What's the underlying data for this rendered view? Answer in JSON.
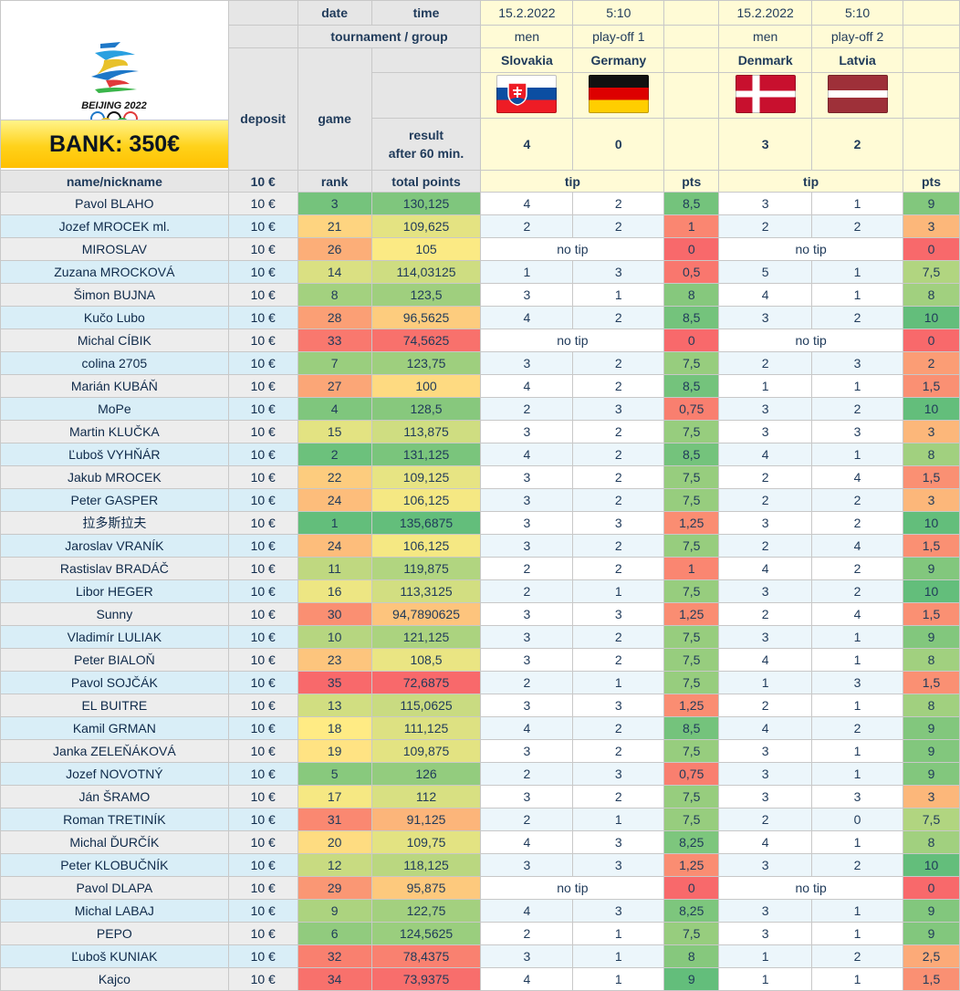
{
  "header": {
    "date_label": "date",
    "time_label": "time",
    "tournament_label": "tournament / group",
    "deposit_label": "deposit",
    "game_label": "game",
    "result_label_1": "result",
    "result_label_2": "after 60 min.",
    "bank": "BANK: 350€",
    "logo_text": "BEIJING 2022"
  },
  "columns": {
    "name": "name/nickname",
    "deposit": "10 €",
    "rank": "rank",
    "total": "total points",
    "tip": "tip",
    "pts": "pts"
  },
  "matches": [
    {
      "date": "15.2.2022",
      "time": "5:10",
      "category": "men",
      "group": "play-off 1",
      "team1": "Slovakia",
      "team2": "Germany",
      "score1": "4",
      "score2": "0"
    },
    {
      "date": "15.2.2022",
      "time": "5:10",
      "category": "men",
      "group": "play-off 2",
      "team1": "Denmark",
      "team2": "Latvia",
      "score1": "3",
      "score2": "2"
    }
  ],
  "colors": {
    "rank_scale_best": "#63be7b",
    "rank_scale_mid": "#ffeb84",
    "rank_scale_worst": "#f8696b"
  },
  "rows": [
    {
      "name": "Pavol BLAHO",
      "deposit": "10 €",
      "rank": "3",
      "total": "130,125",
      "t1a": "4",
      "t1b": "2",
      "p1": "8,5",
      "t2a": "3",
      "t2b": "1",
      "p2": "9"
    },
    {
      "name": "Jozef MROCEK ml.",
      "deposit": "10 €",
      "rank": "21",
      "total": "109,625",
      "t1a": "2",
      "t1b": "2",
      "p1": "1",
      "t2a": "2",
      "t2b": "2",
      "p2": "3"
    },
    {
      "name": "MIROSLAV",
      "deposit": "10 €",
      "rank": "26",
      "total": "105",
      "notip1": "no tip",
      "p1": "0",
      "notip2": "no tip",
      "p2": "0"
    },
    {
      "name": "Zuzana MROCKOVÁ",
      "deposit": "10 €",
      "rank": "14",
      "total": "114,03125",
      "t1a": "1",
      "t1b": "3",
      "p1": "0,5",
      "t2a": "5",
      "t2b": "1",
      "p2": "7,5"
    },
    {
      "name": "Šimon BUJNA",
      "deposit": "10 €",
      "rank": "8",
      "total": "123,5",
      "t1a": "3",
      "t1b": "1",
      "p1": "8",
      "t2a": "4",
      "t2b": "1",
      "p2": "8"
    },
    {
      "name": "Kučo Lubo",
      "deposit": "10 €",
      "rank": "28",
      "total": "96,5625",
      "t1a": "4",
      "t1b": "2",
      "p1": "8,5",
      "t2a": "3",
      "t2b": "2",
      "p2": "10"
    },
    {
      "name": "Michal CÍBIK",
      "deposit": "10 €",
      "rank": "33",
      "total": "74,5625",
      "notip1": "no tip",
      "p1": "0",
      "notip2": "no tip",
      "p2": "0"
    },
    {
      "name": "colina 2705",
      "deposit": "10 €",
      "rank": "7",
      "total": "123,75",
      "t1a": "3",
      "t1b": "2",
      "p1": "7,5",
      "t2a": "2",
      "t2b": "3",
      "p2": "2"
    },
    {
      "name": "Marián KUBÁŇ",
      "deposit": "10 €",
      "rank": "27",
      "total": "100",
      "t1a": "4",
      "t1b": "2",
      "p1": "8,5",
      "t2a": "1",
      "t2b": "1",
      "p2": "1,5"
    },
    {
      "name": "MoPe",
      "deposit": "10 €",
      "rank": "4",
      "total": "128,5",
      "t1a": "2",
      "t1b": "3",
      "p1": "0,75",
      "t2a": "3",
      "t2b": "2",
      "p2": "10"
    },
    {
      "name": "Martin KLUČKA",
      "deposit": "10 €",
      "rank": "15",
      "total": "113,875",
      "t1a": "3",
      "t1b": "2",
      "p1": "7,5",
      "t2a": "3",
      "t2b": "3",
      "p2": "3"
    },
    {
      "name": "Ľuboš VYHŇÁR",
      "deposit": "10 €",
      "rank": "2",
      "total": "131,125",
      "t1a": "4",
      "t1b": "2",
      "p1": "8,5",
      "t2a": "4",
      "t2b": "1",
      "p2": "8"
    },
    {
      "name": "Jakub MROCEK",
      "deposit": "10 €",
      "rank": "22",
      "total": "109,125",
      "t1a": "3",
      "t1b": "2",
      "p1": "7,5",
      "t2a": "2",
      "t2b": "4",
      "p2": "1,5"
    },
    {
      "name": "Peter GASPER",
      "deposit": "10 €",
      "rank": "24",
      "total": "106,125",
      "t1a": "3",
      "t1b": "2",
      "p1": "7,5",
      "t2a": "2",
      "t2b": "2",
      "p2": "3"
    },
    {
      "name": "拉多斯拉夫",
      "deposit": "10 €",
      "rank": "1",
      "total": "135,6875",
      "t1a": "3",
      "t1b": "3",
      "p1": "1,25",
      "t2a": "3",
      "t2b": "2",
      "p2": "10"
    },
    {
      "name": "Jaroslav VRANÍK",
      "deposit": "10 €",
      "rank": "24",
      "total": "106,125",
      "t1a": "3",
      "t1b": "2",
      "p1": "7,5",
      "t2a": "2",
      "t2b": "4",
      "p2": "1,5"
    },
    {
      "name": "Rastislav BRADÁČ",
      "deposit": "10 €",
      "rank": "11",
      "total": "119,875",
      "t1a": "2",
      "t1b": "2",
      "p1": "1",
      "t2a": "4",
      "t2b": "2",
      "p2": "9"
    },
    {
      "name": "Libor HEGER",
      "deposit": "10 €",
      "rank": "16",
      "total": "113,3125",
      "t1a": "2",
      "t1b": "1",
      "p1": "7,5",
      "t2a": "3",
      "t2b": "2",
      "p2": "10"
    },
    {
      "name": "Sunny",
      "deposit": "10 €",
      "rank": "30",
      "total": "94,7890625",
      "t1a": "3",
      "t1b": "3",
      "p1": "1,25",
      "t2a": "2",
      "t2b": "4",
      "p2": "1,5"
    },
    {
      "name": "Vladimír LULIAK",
      "deposit": "10 €",
      "rank": "10",
      "total": "121,125",
      "t1a": "3",
      "t1b": "2",
      "p1": "7,5",
      "t2a": "3",
      "t2b": "1",
      "p2": "9"
    },
    {
      "name": "Peter BIALOŇ",
      "deposit": "10 €",
      "rank": "23",
      "total": "108,5",
      "t1a": "3",
      "t1b": "2",
      "p1": "7,5",
      "t2a": "4",
      "t2b": "1",
      "p2": "8"
    },
    {
      "name": "Pavol SOJČÁK",
      "deposit": "10 €",
      "rank": "35",
      "total": "72,6875",
      "t1a": "2",
      "t1b": "1",
      "p1": "7,5",
      "t2a": "1",
      "t2b": "3",
      "p2": "1,5"
    },
    {
      "name": "EL BUITRE",
      "deposit": "10 €",
      "rank": "13",
      "total": "115,0625",
      "t1a": "3",
      "t1b": "3",
      "p1": "1,25",
      "t2a": "2",
      "t2b": "1",
      "p2": "8"
    },
    {
      "name": "Kamil GRMAN",
      "deposit": "10 €",
      "rank": "18",
      "total": "111,125",
      "t1a": "4",
      "t1b": "2",
      "p1": "8,5",
      "t2a": "4",
      "t2b": "2",
      "p2": "9"
    },
    {
      "name": "Janka ZELEŇÁKOVÁ",
      "deposit": "10 €",
      "rank": "19",
      "total": "109,875",
      "t1a": "3",
      "t1b": "2",
      "p1": "7,5",
      "t2a": "3",
      "t2b": "1",
      "p2": "9"
    },
    {
      "name": "Jozef NOVOTNÝ",
      "deposit": "10 €",
      "rank": "5",
      "total": "126",
      "t1a": "2",
      "t1b": "3",
      "p1": "0,75",
      "t2a": "3",
      "t2b": "1",
      "p2": "9"
    },
    {
      "name": "Ján ŠRAMO",
      "deposit": "10 €",
      "rank": "17",
      "total": "112",
      "t1a": "3",
      "t1b": "2",
      "p1": "7,5",
      "t2a": "3",
      "t2b": "3",
      "p2": "3"
    },
    {
      "name": "Roman TRETINÍK",
      "deposit": "10 €",
      "rank": "31",
      "total": "91,125",
      "t1a": "2",
      "t1b": "1",
      "p1": "7,5",
      "t2a": "2",
      "t2b": "0",
      "p2": "7,5"
    },
    {
      "name": "Michal ĎURČÍK",
      "deposit": "10 €",
      "rank": "20",
      "total": "109,75",
      "t1a": "4",
      "t1b": "3",
      "p1": "8,25",
      "t2a": "4",
      "t2b": "1",
      "p2": "8"
    },
    {
      "name": "Peter KLOBUČNÍK",
      "deposit": "10 €",
      "rank": "12",
      "total": "118,125",
      "t1a": "3",
      "t1b": "3",
      "p1": "1,25",
      "t2a": "3",
      "t2b": "2",
      "p2": "10"
    },
    {
      "name": "Pavol DLAPA",
      "deposit": "10 €",
      "rank": "29",
      "total": "95,875",
      "notip1": "no tip",
      "p1": "0",
      "notip2": "no tip",
      "p2": "0"
    },
    {
      "name": "Michal LABAJ",
      "deposit": "10 €",
      "rank": "9",
      "total": "122,75",
      "t1a": "4",
      "t1b": "3",
      "p1": "8,25",
      "t2a": "3",
      "t2b": "1",
      "p2": "9"
    },
    {
      "name": "PEPO",
      "deposit": "10 €",
      "rank": "6",
      "total": "124,5625",
      "t1a": "2",
      "t1b": "1",
      "p1": "7,5",
      "t2a": "3",
      "t2b": "1",
      "p2": "9"
    },
    {
      "name": "Ľuboš KUNIAK",
      "deposit": "10 €",
      "rank": "32",
      "total": "78,4375",
      "t1a": "3",
      "t1b": "1",
      "p1": "8",
      "t2a": "1",
      "t2b": "2",
      "p2": "2,5"
    },
    {
      "name": "Kajco",
      "deposit": "10 €",
      "rank": "34",
      "total": "73,9375",
      "t1a": "4",
      "t1b": "1",
      "p1": "9",
      "t2a": "1",
      "t2b": "1",
      "p2": "1,5"
    }
  ]
}
